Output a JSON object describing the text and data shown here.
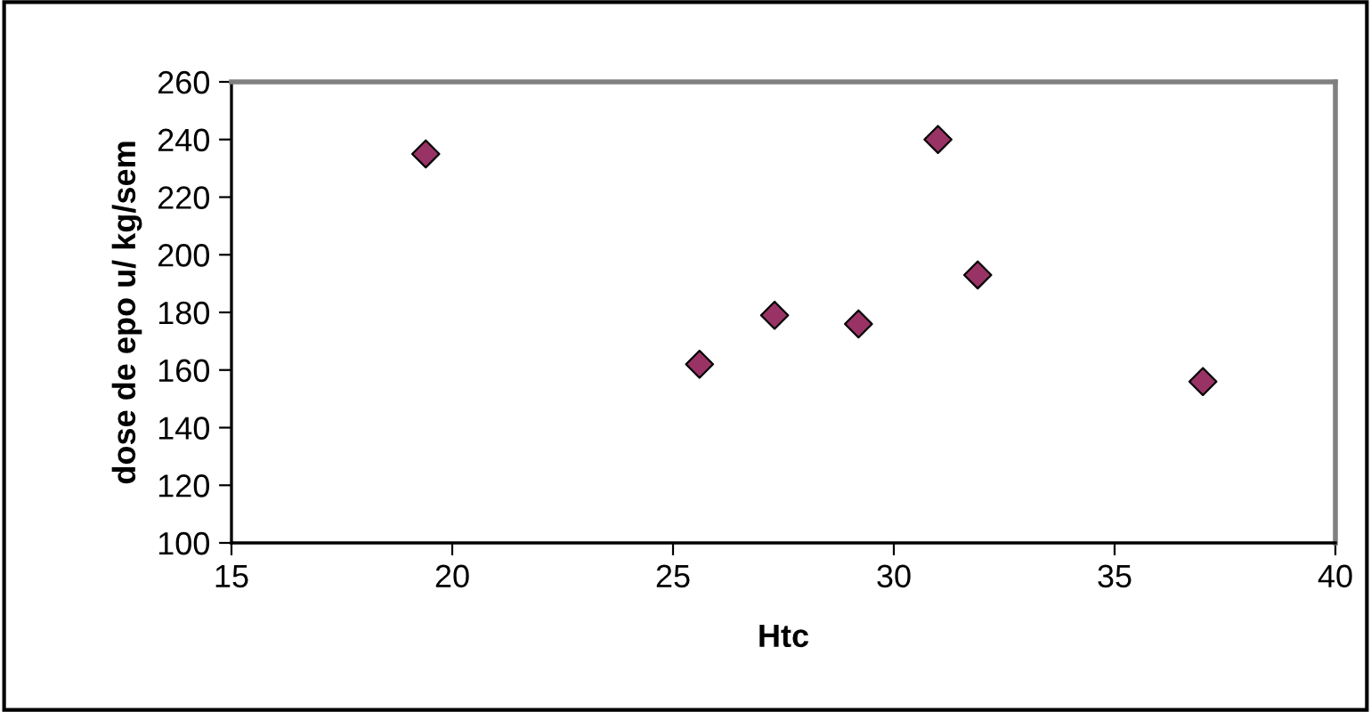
{
  "chart_data": {
    "type": "scatter",
    "xlabel": "Htc",
    "ylabel": "dose de epo u/ kg/sem",
    "x": [
      19.4,
      25.6,
      27.3,
      29.2,
      31.0,
      31.9,
      37.0
    ],
    "series": [
      {
        "color": "#993366",
        "values": [
          235,
          162,
          179,
          176,
          240,
          193,
          156
        ]
      }
    ],
    "marker": "diamond",
    "grid": false,
    "xlim": [
      15,
      40
    ],
    "xticks": [
      15,
      20,
      25,
      30,
      35,
      40
    ],
    "ylim": [
      100,
      260
    ],
    "yticks": [
      100,
      120,
      140,
      160,
      180,
      200,
      220,
      240,
      260
    ]
  }
}
